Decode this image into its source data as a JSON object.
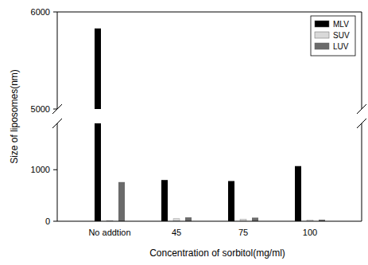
{
  "chart_data": {
    "type": "bar",
    "x_label": "Concentration of sorbitol(mg/ml)",
    "y_label": "Size of liposomes(nm)",
    "categories": [
      "No addtion",
      "45",
      "75",
      "100"
    ],
    "series": [
      {
        "name": "MLV",
        "color": "#000000",
        "values": [
          5830,
          800,
          780,
          1070
        ]
      },
      {
        "name": "SUV",
        "color": "#d9d9d9",
        "values": [
          15,
          50,
          40,
          20
        ]
      },
      {
        "name": "LUV",
        "color": "#6b6b6b",
        "values": [
          760,
          75,
          70,
          30
        ]
      }
    ],
    "ylim": [
      0,
      6000
    ],
    "yticks": [
      0,
      1000,
      5000,
      6000
    ],
    "y_break": [
      1900,
      5000
    ],
    "legend": "upper right",
    "grid": false
  }
}
